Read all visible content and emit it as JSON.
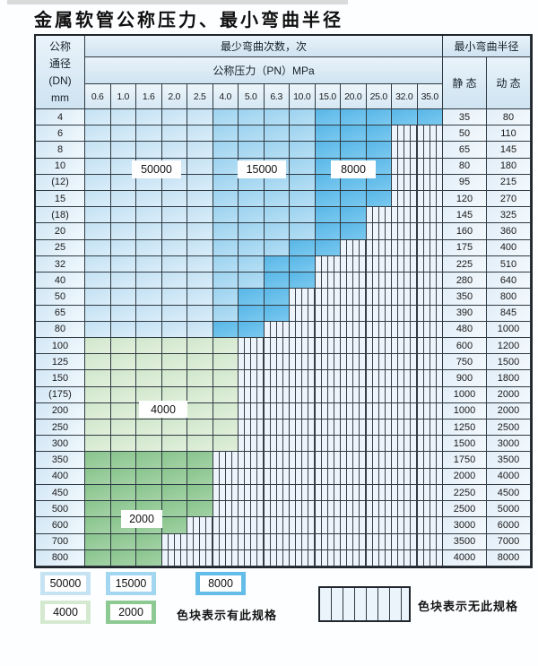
{
  "title": "金属软管公称压力、最小弯曲半径",
  "table": {
    "corner_lines": [
      "公称",
      "通径",
      "(DN)",
      "mm"
    ],
    "bend_times_header": "最少弯曲次数，次",
    "pressure_header": "公称压力（PN）MPa",
    "radius_header": "最小弯曲半径",
    "static_header": "静 态",
    "dynamic_header": "动 态",
    "pn_columns": [
      "0.6",
      "1.0",
      "1.6",
      "2.0",
      "2.5",
      "4.0",
      "5.0",
      "6.3",
      "10.0",
      "15.0",
      "20.0",
      "25.0",
      "32.0",
      "35.0"
    ],
    "rows": [
      {
        "dn": "4",
        "zone": "blue",
        "colored": 14,
        "dark_from": 10,
        "static": "35",
        "dynamic": "80"
      },
      {
        "dn": "6",
        "zone": "blue",
        "colored": 12,
        "dark_from": 10,
        "static": "50",
        "dynamic": "110"
      },
      {
        "dn": "8",
        "zone": "blue",
        "colored": 12,
        "dark_from": 10,
        "static": "65",
        "dynamic": "145"
      },
      {
        "dn": "10",
        "zone": "blue",
        "colored": 12,
        "dark_from": 10,
        "static": "80",
        "dynamic": "180"
      },
      {
        "dn": "(12)",
        "zone": "blue",
        "colored": 12,
        "dark_from": 10,
        "static": "95",
        "dynamic": "215"
      },
      {
        "dn": "15",
        "zone": "blue",
        "colored": 12,
        "dark_from": 10,
        "static": "120",
        "dynamic": "270"
      },
      {
        "dn": "(18)",
        "zone": "blue",
        "colored": 11,
        "dark_from": 10,
        "static": "145",
        "dynamic": "325"
      },
      {
        "dn": "20",
        "zone": "blue",
        "colored": 11,
        "dark_from": 10,
        "static": "160",
        "dynamic": "360"
      },
      {
        "dn": "25",
        "zone": "blue",
        "colored": 10,
        "dark_from": 9,
        "static": "175",
        "dynamic": "400"
      },
      {
        "dn": "32",
        "zone": "blue",
        "colored": 9,
        "dark_from": 8,
        "static": "225",
        "dynamic": "510"
      },
      {
        "dn": "40",
        "zone": "blue",
        "colored": 9,
        "dark_from": 8,
        "static": "280",
        "dynamic": "640"
      },
      {
        "dn": "50",
        "zone": "blue",
        "colored": 8,
        "dark_from": 7,
        "static": "350",
        "dynamic": "800"
      },
      {
        "dn": "65",
        "zone": "blue",
        "colored": 8,
        "dark_from": 7,
        "static": "390",
        "dynamic": "845"
      },
      {
        "dn": "80",
        "zone": "blue",
        "colored": 7,
        "dark_from": 6,
        "static": "480",
        "dynamic": "1000"
      },
      {
        "dn": "100",
        "zone": "g4",
        "colored": 6,
        "dark_from": 0,
        "static": "600",
        "dynamic": "1200"
      },
      {
        "dn": "125",
        "zone": "g4",
        "colored": 6,
        "dark_from": 0,
        "static": "750",
        "dynamic": "1500"
      },
      {
        "dn": "150",
        "zone": "g4",
        "colored": 6,
        "dark_from": 0,
        "static": "900",
        "dynamic": "1800"
      },
      {
        "dn": "(175)",
        "zone": "g4",
        "colored": 6,
        "dark_from": 0,
        "static": "1000",
        "dynamic": "2000"
      },
      {
        "dn": "200",
        "zone": "g4",
        "colored": 6,
        "dark_from": 0,
        "static": "1000",
        "dynamic": "2000"
      },
      {
        "dn": "250",
        "zone": "g4",
        "colored": 6,
        "dark_from": 0,
        "static": "1250",
        "dynamic": "2500"
      },
      {
        "dn": "300",
        "zone": "g4",
        "colored": 6,
        "dark_from": 0,
        "static": "1500",
        "dynamic": "3000"
      },
      {
        "dn": "350",
        "zone": "g2",
        "colored": 5,
        "dark_from": 0,
        "static": "1750",
        "dynamic": "3500"
      },
      {
        "dn": "400",
        "zone": "g2",
        "colored": 5,
        "dark_from": 0,
        "static": "2000",
        "dynamic": "4000"
      },
      {
        "dn": "450",
        "zone": "g2",
        "colored": 5,
        "dark_from": 0,
        "static": "2250",
        "dynamic": "4500"
      },
      {
        "dn": "500",
        "zone": "g2",
        "colored": 5,
        "dark_from": 0,
        "static": "2500",
        "dynamic": "5000"
      },
      {
        "dn": "600",
        "zone": "g2",
        "colored": 4,
        "dark_from": 0,
        "static": "3000",
        "dynamic": "6000"
      },
      {
        "dn": "700",
        "zone": "g2",
        "colored": 3,
        "dark_from": 0,
        "static": "3500",
        "dynamic": "7000"
      },
      {
        "dn": "800",
        "zone": "g2",
        "colored": 3,
        "dark_from": 0,
        "static": "4000",
        "dynamic": "8000"
      }
    ]
  },
  "overlays": {
    "l50000": "50000",
    "l15000": "15000",
    "l8000": "8000",
    "l4000": "4000",
    "l2000": "2000"
  },
  "legend": {
    "l50000": "50000",
    "l15000": "15000",
    "l8000": "8000",
    "l4000": "4000",
    "l2000": "2000",
    "has_spec_note": "色块表示有此规格",
    "no_spec_note": "色块表示无此规格"
  },
  "colors": {
    "blue_light": "#c6e3f4",
    "blue_medium": "#a3d6f1",
    "blue_dark": "#64bce9",
    "green_light": "#d4e9d0",
    "green_medium": "#8dc992",
    "hatch_bg": "#edf4fb"
  }
}
